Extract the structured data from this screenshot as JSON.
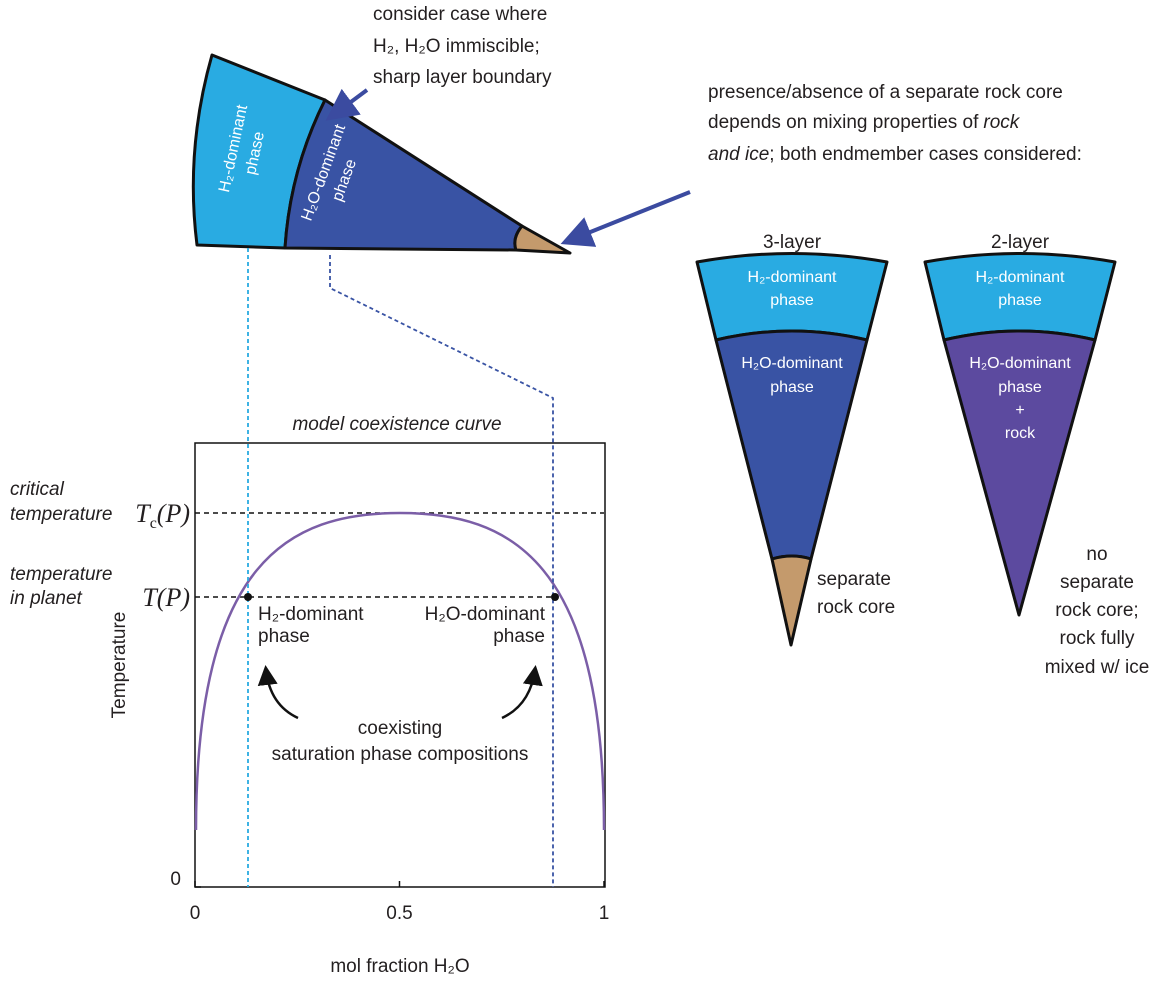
{
  "top_annotation": [
    "consider case where",
    "H₂, H₂O immiscible;",
    "sharp layer boundary"
  ],
  "planet_slice": {
    "outer_layer": [
      "H₂-dominant",
      "phase"
    ],
    "inner_layer": [
      "H₂O-dominant",
      "phase"
    ]
  },
  "core_annotation": {
    "line1": "presence/absence of a separate rock core",
    "line2": "depends on mixing properties of",
    "line2_italic": "rock",
    "line3_italic": "and ice",
    "line3": "; both endmember cases considered:"
  },
  "three_layer": {
    "title": "3-layer",
    "outer_layer": [
      "H₂-dominant",
      "phase"
    ],
    "inner_layer": [
      "H₂O-dominant",
      "phase"
    ],
    "note": [
      "separate",
      "rock core"
    ]
  },
  "two_layer": {
    "title": "2-layer",
    "outer_layer": [
      "H₂-dominant",
      "phase"
    ],
    "inner_layer": [
      "H₂O-dominant",
      "phase",
      "+",
      "rock"
    ],
    "note": [
      "no",
      "separate",
      "rock core;",
      "rock fully",
      "mixed w/ ice"
    ]
  },
  "plot": {
    "title": "model coexistence curve",
    "xlabel": "mol fraction H₂O",
    "ylabel": "Temperature",
    "xlim": [
      0,
      1
    ],
    "xticks": [
      0,
      0.5,
      1
    ],
    "yticks": [
      0
    ],
    "critical_level": {
      "label": [
        "critical",
        "temperature"
      ],
      "symbol": "T",
      "subscript": "c",
      "argument": "(P)"
    },
    "planet_level": {
      "label": [
        "temperature",
        "in planet"
      ],
      "symbol": "T",
      "argument": "(P)"
    },
    "left_phase": [
      "H₂-dominant",
      "phase"
    ],
    "right_phase": [
      "H₂O-dominant",
      "phase"
    ],
    "note": [
      "coexisting",
      "saturation phase compositions"
    ]
  }
}
